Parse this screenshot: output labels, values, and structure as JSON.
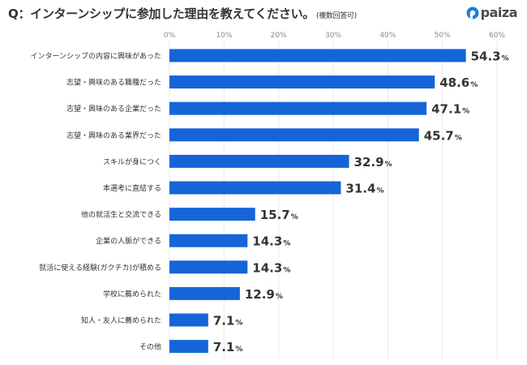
{
  "title": {
    "main": "Q：インターンシップに参加した理由を教えてください。",
    "note": "(複数回答可)"
  },
  "logo": {
    "text": "paiza"
  },
  "colors": {
    "bar": "#1565d8",
    "grid": "#e8e8e8",
    "tick": "#8a8a8a",
    "text": "#333333",
    "logo_blue": "#1a7fd6",
    "logo_dark": "#2a4f86"
  },
  "chart_data": {
    "type": "bar",
    "orientation": "horizontal",
    "title": "Q：インターンシップに参加した理由を教えてください。(複数回答可)",
    "xlabel": "",
    "ylabel": "",
    "xlim": [
      0,
      60
    ],
    "ticks": [
      0,
      10,
      20,
      30,
      40,
      50,
      60
    ],
    "tick_labels": [
      "0%",
      "10%",
      "20%",
      "30%",
      "40%",
      "50%",
      "60%"
    ],
    "categories": [
      "インターンシップの内容に興味があった",
      "志望・興味のある職種だった",
      "志望・興味のある企業だった",
      "志望・興味のある業界だった",
      "スキルが身につく",
      "本選考に直結する",
      "他の就活生と交流できる",
      "企業の人脈ができる",
      "就活に使える経験(ガクチカ)が積める",
      "学校に薦められた",
      "知人・友人に薦められた",
      "その他"
    ],
    "values": [
      54.3,
      48.6,
      47.1,
      45.7,
      32.9,
      31.4,
      15.7,
      14.3,
      14.3,
      12.9,
      7.1,
      7.1
    ],
    "value_labels": [
      "54.3",
      "48.6",
      "47.1",
      "45.7",
      "32.9",
      "31.4",
      "15.7",
      "14.3",
      "14.3",
      "12.9",
      "7.1",
      "7.1"
    ],
    "unit": "%",
    "grid": true
  }
}
